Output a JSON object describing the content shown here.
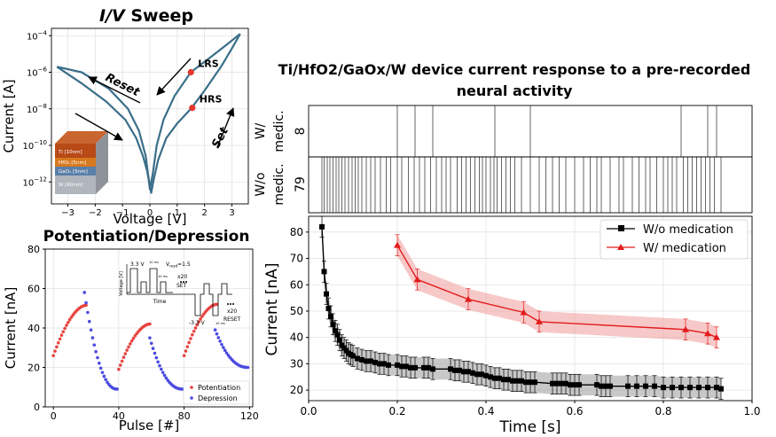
{
  "chart_data": [
    {
      "type": "line",
      "title_italic_part": "I/V",
      "title_rest": " Sweep",
      "xlabel": "Voltage [V]",
      "ylabel": "Current [A]",
      "xlim": [
        -3.6,
        3.6
      ],
      "ylim_log10": [
        -13.2,
        -3.6
      ],
      "y_scale": "log",
      "xticks": [
        -3,
        -2,
        -1,
        0,
        1,
        2,
        3
      ],
      "yticks": [
        {
          "base": "10",
          "exp": "−4",
          "value": -4
        },
        {
          "base": "10",
          "exp": "−6",
          "value": -6
        },
        {
          "base": "10",
          "exp": "−8",
          "value": -8
        },
        {
          "base": "10",
          "exp": "−10",
          "value": -10
        },
        {
          "base": "10",
          "exp": "−12",
          "value": -12
        }
      ],
      "grid": true,
      "curve_color": "#3a6e89",
      "hrs_branch": {
        "x": [
          -3.4,
          -2.5,
          -1.6,
          -0.9,
          -0.5,
          -0.25,
          -0.1,
          0.05,
          0.15,
          0.3,
          0.6,
          1.0,
          1.5,
          2.0,
          2.6,
          3.0,
          3.3
        ],
        "log_y": [
          -5.7,
          -6.6,
          -7.6,
          -8.6,
          -9.6,
          -10.6,
          -11.4,
          -12.6,
          -11.8,
          -10.8,
          -9.6,
          -8.8,
          -8.0,
          -7.0,
          -5.7,
          -4.7,
          -3.9
        ]
      },
      "lrs_branch": {
        "x": [
          -3.4,
          -2.5,
          -1.5,
          -0.8,
          -0.4,
          -0.15,
          0.0,
          0.1,
          0.25,
          0.5,
          0.9,
          1.5,
          2.2,
          2.8,
          3.3
        ],
        "log_y": [
          -5.7,
          -6.0,
          -6.9,
          -8.0,
          -9.2,
          -10.6,
          -12.4,
          -11.6,
          -10.0,
          -8.6,
          -7.3,
          -6.0,
          -5.2,
          -4.5,
          -3.9
        ]
      },
      "markers": [
        {
          "label": "LRS",
          "x": 1.5,
          "log_y": -6.0,
          "color": "#e3372f"
        },
        {
          "label": "HRS",
          "x": 1.55,
          "log_y": -7.95,
          "color": "#e3372f"
        }
      ],
      "arrow_labels": {
        "reset": "Reset",
        "set": "Set"
      },
      "inset_layers": [
        "Ti [10nm]",
        "HfO₂ [5nm]",
        "GaOₓ [5nm]",
        "W [60nm]"
      ],
      "inset_colors": [
        "#b84a17",
        "#d7791e",
        "#5a7fa8",
        "#b1b5bc"
      ]
    },
    {
      "type": "scatter",
      "title": "Potentiation/Depression",
      "xlabel": "Pulse [#]",
      "ylabel": "Current [nA]",
      "xlim": [
        -5,
        122
      ],
      "ylim": [
        0,
        80
      ],
      "xticks": [
        0,
        40,
        80,
        120
      ],
      "yticks": [
        0,
        20,
        40,
        60,
        80
      ],
      "grid": true,
      "legend_position": "bottom-right",
      "series": [
        {
          "name": "Potentiation",
          "color": "#e8433f",
          "segments": [
            {
              "start": 0,
              "count": 21,
              "from": 26,
              "to": 51.5
            },
            {
              "start": 40,
              "count": 20,
              "from": 19,
              "to": 42
            },
            {
              "start": 80,
              "count": 21,
              "from": 26,
              "to": 52
            }
          ]
        },
        {
          "name": "Depression",
          "color": "#4b4be0",
          "segments": [
            {
              "start": 19,
              "count": 21,
              "from": 58,
              "to": 9
            },
            {
              "start": 59,
              "count": 21,
              "from": 35,
              "to": 9
            },
            {
              "start": 99,
              "count": 21,
              "from": 39,
              "to": 20
            }
          ]
        }
      ],
      "pulse_inset": {
        "set_voltage": "3.3 V",
        "reset_voltage": "-3.3 V",
        "read_voltage_prefix": "V",
        "read_voltage_sub": "read",
        "read_voltage_value": "=1.5",
        "set_repeat": "x20",
        "set_label": "SET",
        "reset_repeat": "x20",
        "reset_label": "RESET",
        "ylabel": "Voltage [V]",
        "xlabel": "Time",
        "width_labels": [
          "10 ms",
          "10 ms",
          "10 ms"
        ]
      }
    },
    {
      "type": "line",
      "title": "Ti/HfO2/GaOx/W device current response to a pre-recorded neural activity",
      "title_lines": [
        "Ti/HfO2/GaOx/W device current response to a pre-recorded",
        "neural activity"
      ],
      "raster": {
        "rows": [
          {
            "label_top": "W/",
            "label_bottom": "medic.",
            "count": "8",
            "spikes": [
              0.2,
              0.24,
              0.28,
              0.42,
              0.5,
              0.84,
              0.9,
              0.92
            ]
          },
          {
            "label_top": "W/o",
            "label_bottom": "medic.",
            "count": "79",
            "spikes": [
              0.03,
              0.035,
              0.042,
              0.048,
              0.055,
              0.062,
              0.068,
              0.075,
              0.082,
              0.09,
              0.098,
              0.105,
              0.112,
              0.12,
              0.13,
              0.14,
              0.15,
              0.162,
              0.175,
              0.185,
              0.2,
              0.21,
              0.225,
              0.238,
              0.25,
              0.262,
              0.275,
              0.288,
              0.3,
              0.31,
              0.32,
              0.335,
              0.345,
              0.355,
              0.365,
              0.375,
              0.385,
              0.392,
              0.4,
              0.41,
              0.418,
              0.425,
              0.435,
              0.445,
              0.455,
              0.465,
              0.48,
              0.5,
              0.52,
              0.535,
              0.55,
              0.565,
              0.58,
              0.6,
              0.62,
              0.635,
              0.65,
              0.66,
              0.68,
              0.7,
              0.71,
              0.73,
              0.745,
              0.76,
              0.77,
              0.785,
              0.8,
              0.81,
              0.82,
              0.83,
              0.845,
              0.855,
              0.865,
              0.875,
              0.885,
              0.895,
              0.905,
              0.915,
              0.93
            ]
          }
        ]
      },
      "xlabel": "Time [s]",
      "ylabel": "Current [nA]",
      "xlim": [
        0.0,
        1.0
      ],
      "ylim": [
        16,
        86
      ],
      "xticks": [
        0.0,
        0.2,
        0.4,
        0.6,
        0.8,
        1.0
      ],
      "yticks": [
        20,
        30,
        40,
        50,
        60,
        70,
        80
      ],
      "grid": true,
      "legend_position": "top-right",
      "series": [
        {
          "name": "W/o medication",
          "color": "#000000",
          "band_color": "#9a9a9a",
          "marker": "square",
          "x": [
            0.03,
            0.035,
            0.04,
            0.045,
            0.05,
            0.055,
            0.06,
            0.065,
            0.07,
            0.075,
            0.08,
            0.085,
            0.09,
            0.095,
            0.1,
            0.11,
            0.12,
            0.13,
            0.14,
            0.15,
            0.16,
            0.17,
            0.18,
            0.2,
            0.21,
            0.22,
            0.23,
            0.24,
            0.26,
            0.27,
            0.28,
            0.32,
            0.33,
            0.34,
            0.35,
            0.36,
            0.37,
            0.38,
            0.39,
            0.4,
            0.41,
            0.42,
            0.43,
            0.44,
            0.45,
            0.46,
            0.47,
            0.48,
            0.49,
            0.5,
            0.51,
            0.55,
            0.56,
            0.57,
            0.58,
            0.59,
            0.6,
            0.61,
            0.65,
            0.66,
            0.67,
            0.68,
            0.72,
            0.74,
            0.76,
            0.78,
            0.8,
            0.82,
            0.84,
            0.86,
            0.88,
            0.9,
            0.92,
            0.93
          ],
          "y": [
            82,
            65,
            56.5,
            51,
            48,
            45,
            42.5,
            41,
            39,
            37,
            36,
            35,
            34,
            33.5,
            33,
            32,
            31.5,
            31,
            31,
            30.5,
            30,
            30,
            29.5,
            29.5,
            29,
            29,
            28.5,
            28.5,
            28.5,
            28.5,
            28,
            28,
            27.5,
            27.5,
            27,
            27,
            26.5,
            26,
            26,
            25.5,
            25,
            24.5,
            24.5,
            24,
            24,
            23.5,
            23.5,
            23.5,
            23,
            23,
            23,
            22.5,
            22.5,
            22.5,
            22.5,
            22,
            22,
            22,
            22,
            21.5,
            21.5,
            21.5,
            21.5,
            21.5,
            21.5,
            21.5,
            21,
            21,
            21,
            21,
            21,
            21,
            21,
            20.5
          ],
          "err": 4
        },
        {
          "name": "W/ medication",
          "color": "#e31b1b",
          "band_color": "#f19a9a",
          "marker": "triangle",
          "x": [
            0.2,
            0.245,
            0.36,
            0.485,
            0.52,
            0.85,
            0.9,
            0.92
          ],
          "y": [
            75,
            62,
            54.5,
            49.5,
            46,
            43,
            41.5,
            40
          ],
          "err": 4
        }
      ]
    }
  ]
}
